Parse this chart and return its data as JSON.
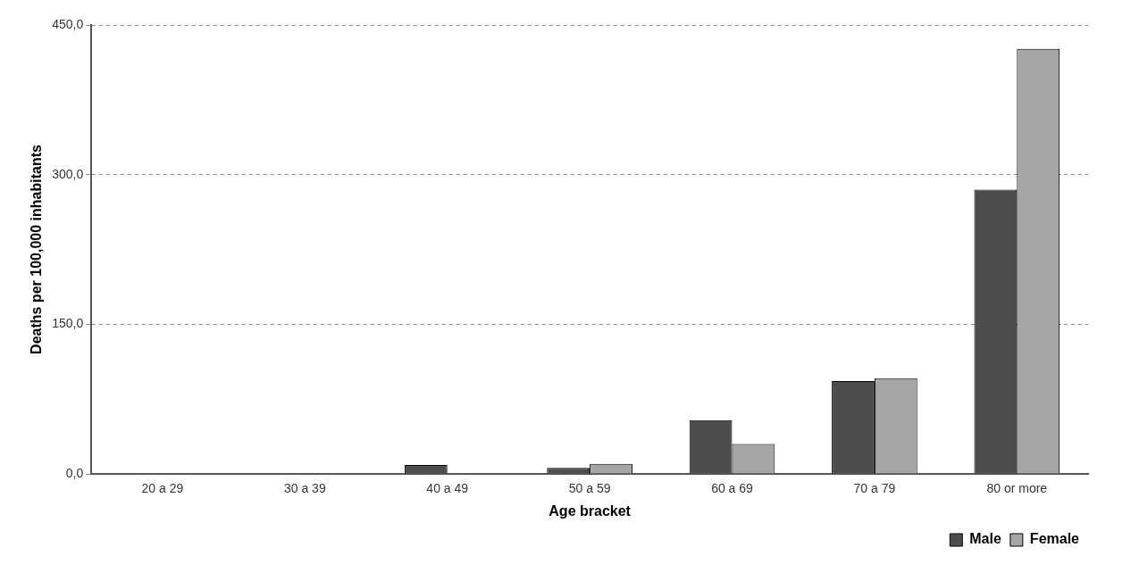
{
  "chart_data": {
    "type": "bar",
    "xlabel": "Age bracket",
    "ylabel": "Deaths per 100,000 inhabitants",
    "categories": [
      "20 a 29",
      "30 a 39",
      "40 a 49",
      "50 a 59",
      "60 a 69",
      "70 a 79",
      "80 or more"
    ],
    "series": [
      {
        "name": "Male",
        "color": "#4d4d4d",
        "values": [
          0,
          0,
          9,
          6,
          54,
          93,
          285
        ]
      },
      {
        "name": "Female",
        "color": "#a6a6a6",
        "values": [
          0,
          0,
          0,
          10,
          30,
          96,
          426
        ]
      }
    ],
    "ylim": [
      0,
      450
    ],
    "yticks": [
      {
        "value": 0,
        "label": "0,0"
      },
      {
        "value": 150,
        "label": "150,0"
      },
      {
        "value": 300,
        "label": "300,0"
      },
      {
        "value": 450,
        "label": "450,0"
      }
    ],
    "grid": "y",
    "legend": "bottom right"
  }
}
